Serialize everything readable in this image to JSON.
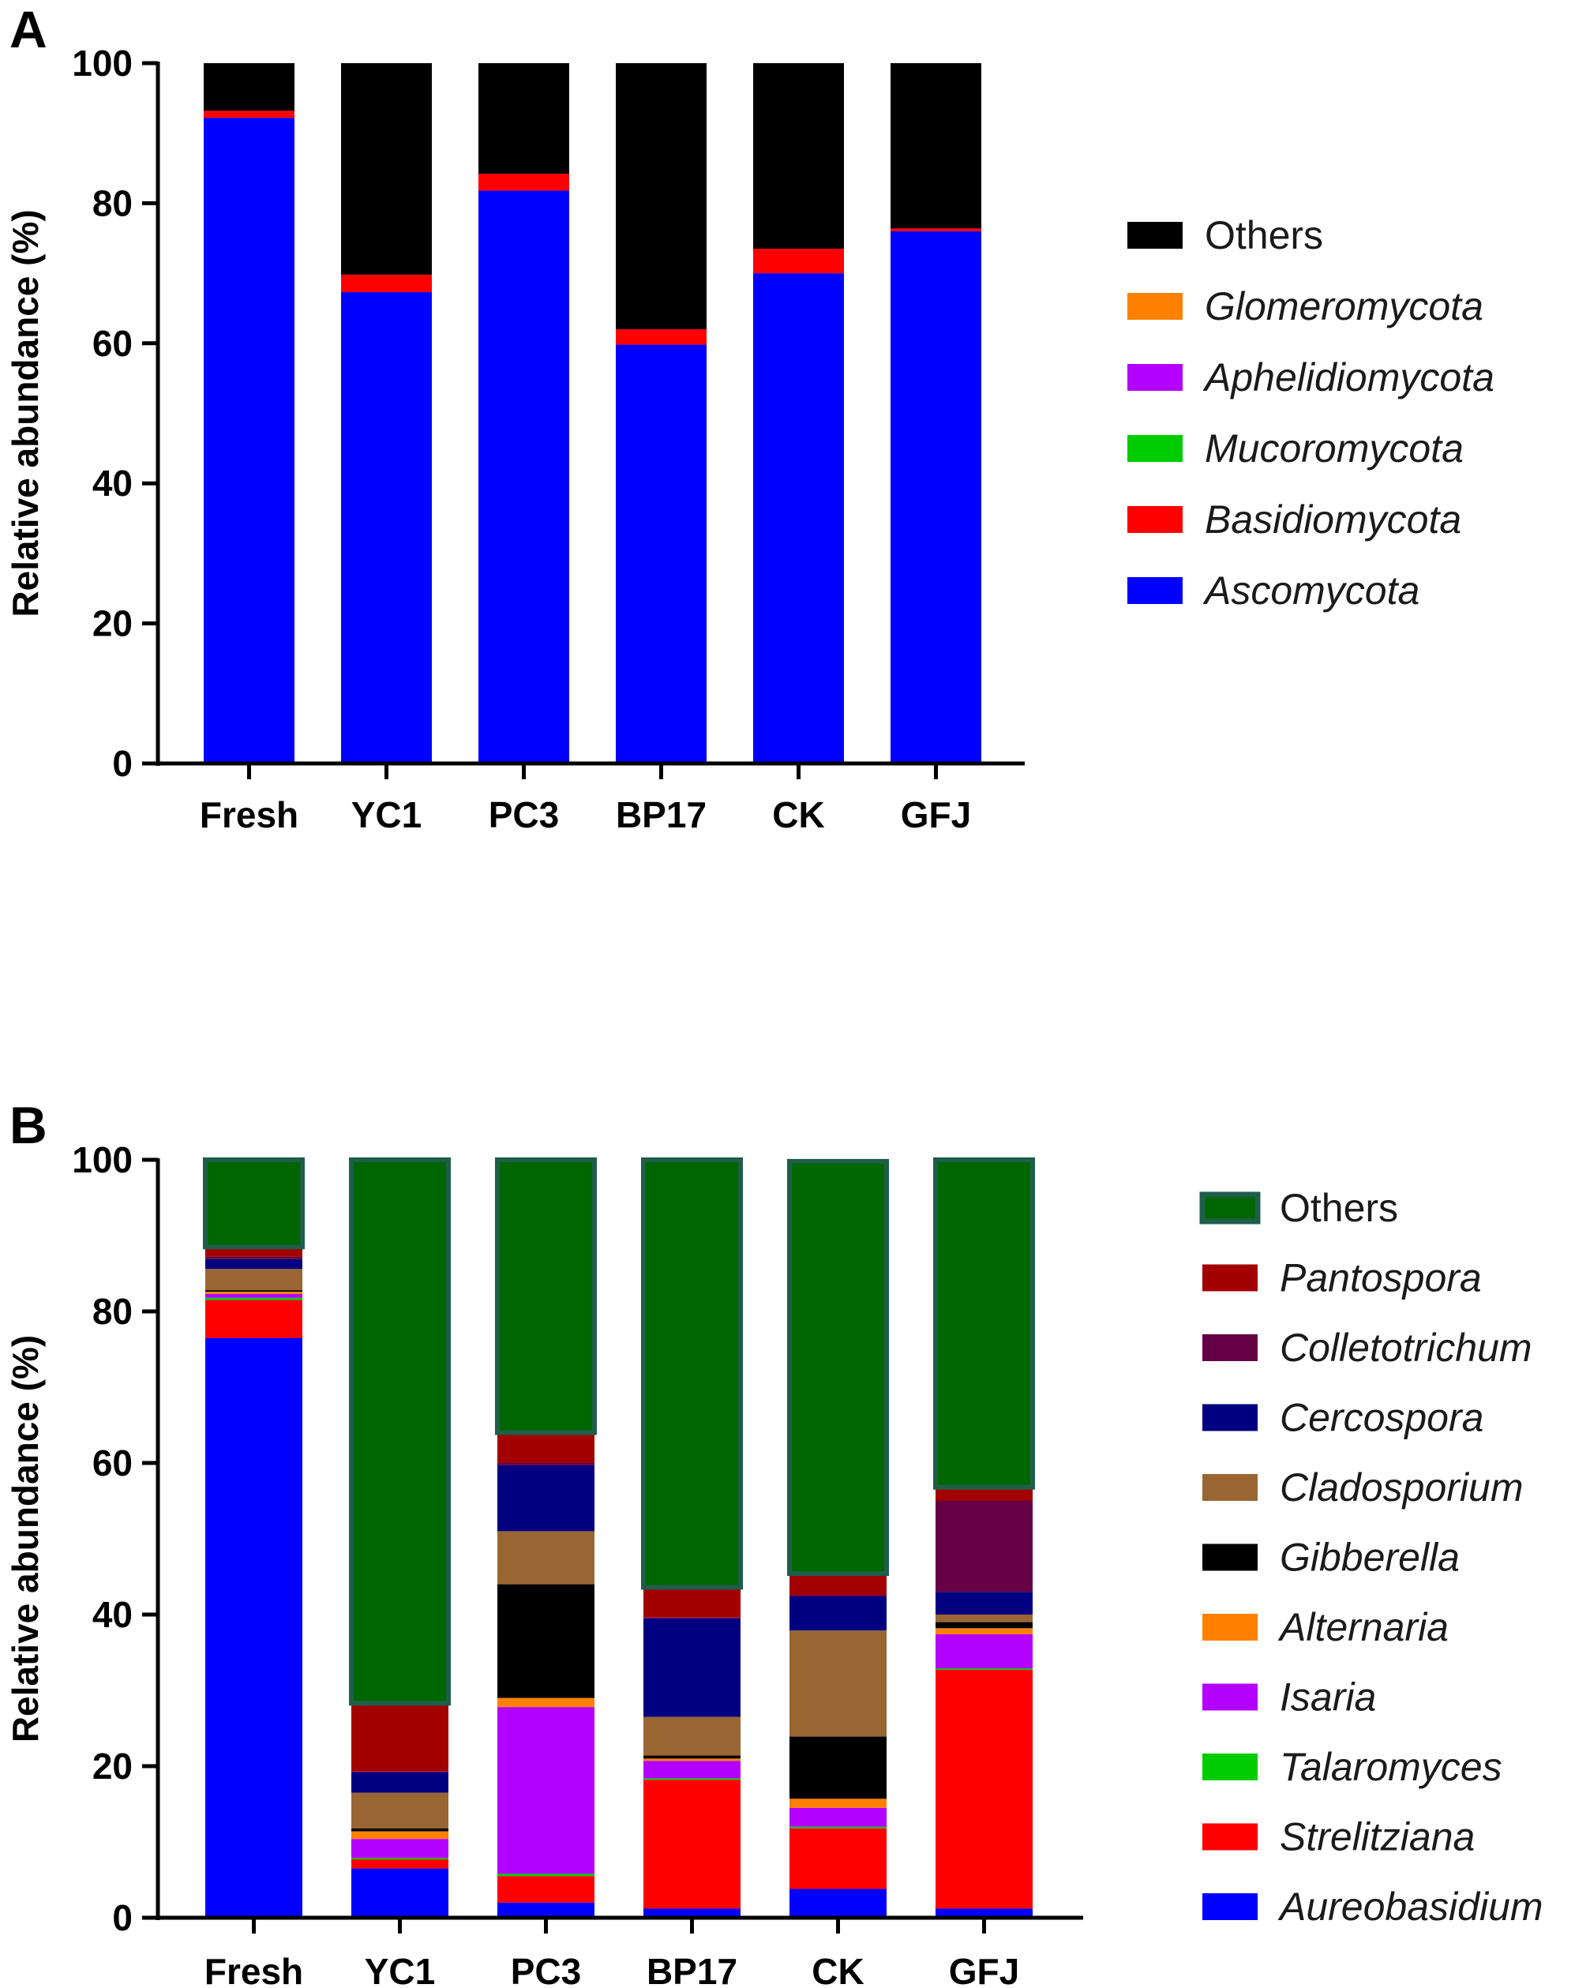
{
  "chart_data": [
    {
      "panel": "A",
      "type": "bar",
      "stacked": true,
      "title": "",
      "xlabel": "",
      "ylabel": "Relative abundance (%)",
      "ylim": [
        0,
        100
      ],
      "yticks": [
        0,
        20,
        40,
        60,
        80,
        100
      ],
      "legend_position": "right",
      "categories": [
        "Fresh",
        "YC1",
        "PC3",
        "BP17",
        "CK",
        "GFJ"
      ],
      "series": [
        {
          "name": "Ascomycota",
          "italic": true,
          "color": "#0000ff",
          "values": [
            92.2,
            67.3,
            81.8,
            59.8,
            70.0,
            76.0
          ]
        },
        {
          "name": "Basidiomycota",
          "italic": true,
          "color": "#ff0000",
          "values": [
            1.0,
            2.5,
            2.4,
            2.2,
            3.5,
            0.4
          ]
        },
        {
          "name": "Mucoromycota",
          "italic": true,
          "color": "#00cc00",
          "values": [
            0,
            0,
            0,
            0,
            0,
            0
          ]
        },
        {
          "name": "Aphelidiomycota",
          "italic": true,
          "color": "#b300ff",
          "values": [
            0,
            0,
            0,
            0,
            0,
            0
          ]
        },
        {
          "name": "Glomeromycota",
          "italic": true,
          "color": "#ff8000",
          "values": [
            0,
            0,
            0,
            0,
            0,
            0
          ]
        },
        {
          "name": "Others",
          "italic": false,
          "color": "#000000",
          "values": [
            6.8,
            30.2,
            15.8,
            38.0,
            26.5,
            23.6
          ]
        }
      ]
    },
    {
      "panel": "B",
      "type": "bar",
      "stacked": true,
      "title": "",
      "xlabel": "",
      "ylabel": "Relative abundance (%)",
      "ylim": [
        0,
        100
      ],
      "yticks": [
        0,
        20,
        40,
        60,
        80,
        100
      ],
      "legend_position": "right",
      "categories": [
        "Fresh",
        "YC1",
        "PC3",
        "BP17",
        "CK",
        "GFJ"
      ],
      "series": [
        {
          "name": "Aureobasidium",
          "italic": true,
          "color": "#0000ff",
          "values": [
            76.5,
            6.5,
            2.0,
            1.2,
            3.8,
            1.2
          ]
        },
        {
          "name": "Strelitziana",
          "italic": true,
          "color": "#ff0000",
          "values": [
            5.0,
            1.2,
            3.5,
            17.0,
            8.0,
            31.5
          ]
        },
        {
          "name": "Talaromyces",
          "italic": true,
          "color": "#00cc00",
          "values": [
            0.3,
            0.2,
            0.3,
            0.2,
            0.2,
            0.2
          ]
        },
        {
          "name": "Isaria",
          "italic": true,
          "color": "#b300ff",
          "values": [
            0.5,
            2.5,
            22.0,
            2.3,
            2.5,
            4.5
          ]
        },
        {
          "name": "Alternaria",
          "italic": true,
          "color": "#ff8000",
          "values": [
            0.3,
            1.0,
            1.2,
            0.3,
            1.2,
            0.8
          ]
        },
        {
          "name": "Gibberella",
          "italic": true,
          "color": "#000000",
          "values": [
            0.2,
            0.4,
            15.0,
            0.4,
            8.2,
            0.8
          ]
        },
        {
          "name": "Cladosporium",
          "italic": true,
          "color": "#996633",
          "values": [
            2.8,
            4.7,
            7.0,
            5.1,
            14.0,
            1.0
          ]
        },
        {
          "name": "Cercospora",
          "italic": true,
          "color": "#000080",
          "values": [
            1.3,
            2.7,
            8.7,
            13.0,
            4.5,
            3.0
          ]
        },
        {
          "name": "Colletotrichum",
          "italic": true,
          "color": "#660044",
          "values": [
            0.3,
            0.1,
            0.3,
            0.1,
            0.2,
            12.0
          ]
        },
        {
          "name": "Pantospora",
          "italic": true,
          "color": "#a30000",
          "values": [
            1.3,
            9.0,
            4.0,
            4.0,
            2.8,
            1.8
          ]
        },
        {
          "name": "Others",
          "italic": false,
          "color": "#006600",
          "values": [
            11.5,
            71.7,
            36.0,
            56.4,
            54.4,
            43.2
          ]
        }
      ]
    }
  ]
}
